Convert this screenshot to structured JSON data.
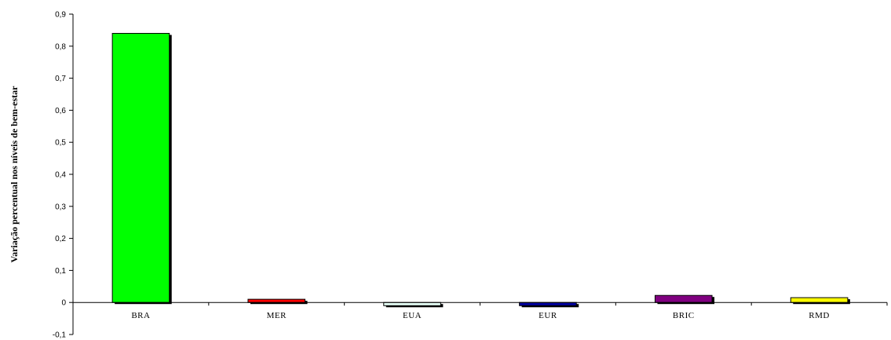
{
  "chart_data": {
    "type": "bar",
    "title": "",
    "xlabel": "",
    "ylabel": "Variação percentual nos níveis de bem-estar",
    "ylim": [
      -0.1,
      0.9
    ],
    "y_ticks": [
      "0,9",
      "0,8",
      "0,7",
      "0,6",
      "0,5",
      "0,4",
      "0,3",
      "0,2",
      "0,1",
      "0",
      "-0,1"
    ],
    "y_tick_values": [
      0.9,
      0.8,
      0.7,
      0.6,
      0.5,
      0.4,
      0.3,
      0.2,
      0.1,
      0,
      -0.1
    ],
    "grid": false,
    "legend": "none",
    "categories": [
      "BRA",
      "MER",
      "EUA",
      "EUR",
      "BRIC",
      "RMD"
    ],
    "values": [
      0.84,
      0.01,
      -0.01,
      -0.01,
      0.022,
      0.015
    ],
    "colors": [
      "#00ff00",
      "#ff0000",
      "#e6fff6",
      "#0000a0",
      "#800080",
      "#ffff00"
    ]
  }
}
